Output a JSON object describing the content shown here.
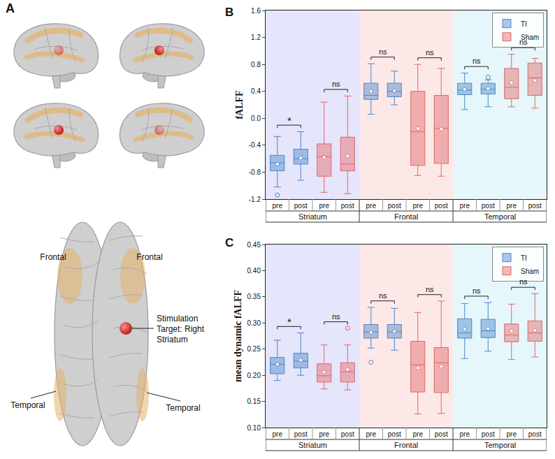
{
  "chart_data": [
    {
      "panel": "B",
      "type": "box",
      "ylabel": "fALFF",
      "ylim": [
        -1.2,
        1.6
      ],
      "yticks": [
        -1.2,
        -0.8,
        -0.4,
        {
          "value": 0,
          "label": "0.0"
        },
        0.4,
        0.8,
        1.2,
        1.6
      ],
      "categories": [
        "pre",
        "post"
      ],
      "groups": [
        "Striatum",
        "Frontal",
        "Temporal"
      ],
      "legend": "top right",
      "series": [
        {
          "name": "TI",
          "color": "#4a86c8",
          "comparisons": [
            "*",
            "ns",
            "ns"
          ],
          "boxes": [
            [
              {
                "lower": -1.02,
                "q1": -0.78,
                "median": -0.66,
                "q3": -0.55,
                "upper": -0.27,
                "mean": -0.68,
                "outliers": [
                  -1.14
                ]
              },
              {
                "lower": -0.92,
                "q1": -0.68,
                "median": -0.6,
                "q3": -0.46,
                "upper": -0.2,
                "mean": -0.59,
                "outliers": []
              }
            ],
            [
              {
                "lower": 0.06,
                "q1": 0.28,
                "median": 0.34,
                "q3": 0.52,
                "upper": 0.81,
                "mean": 0.4,
                "outliers": []
              },
              {
                "lower": 0.2,
                "q1": 0.32,
                "median": 0.4,
                "q3": 0.52,
                "upper": 0.7,
                "mean": 0.41,
                "outliers": []
              }
            ],
            [
              {
                "lower": 0.13,
                "q1": 0.35,
                "median": 0.42,
                "q3": 0.52,
                "upper": 0.67,
                "mean": 0.43,
                "outliers": []
              },
              {
                "lower": 0.17,
                "q1": 0.36,
                "median": 0.43,
                "q3": 0.52,
                "upper": 0.57,
                "mean": 0.44,
                "outliers": [
                  0.61
                ]
              }
            ]
          ]
        },
        {
          "name": "Sham",
          "color": "#e06666",
          "comparisons": [
            "ns",
            "ns",
            "ns"
          ],
          "boxes": [
            [
              {
                "lower": -1.1,
                "q1": -0.86,
                "median": -0.57,
                "q3": -0.38,
                "upper": 0.24,
                "mean": -0.58,
                "outliers": []
              },
              {
                "lower": -1.12,
                "q1": -0.78,
                "median": -0.68,
                "q3": -0.28,
                "upper": 0.33,
                "mean": -0.56,
                "outliers": []
              }
            ],
            [
              {
                "lower": -0.85,
                "q1": -0.7,
                "median": -0.2,
                "q3": 0.4,
                "upper": 0.8,
                "mean": -0.15,
                "outliers": []
              },
              {
                "lower": -0.86,
                "q1": -0.67,
                "median": -0.15,
                "q3": 0.34,
                "upper": 0.74,
                "mean": -0.16,
                "outliers": []
              }
            ],
            [
              {
                "lower": 0.17,
                "q1": 0.29,
                "median": 0.46,
                "q3": 0.74,
                "upper": 0.95,
                "mean": 0.53,
                "outliers": []
              },
              {
                "lower": 0.15,
                "q1": 0.34,
                "median": 0.6,
                "q3": 0.82,
                "upper": 0.89,
                "mean": 0.56,
                "outliers": []
              }
            ]
          ]
        }
      ]
    },
    {
      "panel": "C",
      "type": "box",
      "ylabel": "mean dynamic fALFF",
      "ylim": [
        0.1,
        0.45
      ],
      "yticks": [
        {
          "value": 0.1,
          "label": "0.10"
        },
        0.15,
        {
          "value": 0.2,
          "label": "0.20"
        },
        0.25,
        {
          "value": 0.3,
          "label": "0.30"
        },
        0.35,
        {
          "value": 0.4,
          "label": "0.40"
        },
        0.45
      ],
      "categories": [
        "pre",
        "post"
      ],
      "groups": [
        "Striatum",
        "Frontal",
        "Temporal"
      ],
      "legend": "top right",
      "series": [
        {
          "name": "TI",
          "color": "#4a86c8",
          "comparisons": [
            "*",
            "ns",
            "ns"
          ],
          "boxes": [
            [
              {
                "lower": 0.19,
                "q1": 0.203,
                "median": 0.221,
                "q3": 0.234,
                "upper": 0.267,
                "mean": 0.221,
                "outliers": []
              },
              {
                "lower": 0.2,
                "q1": 0.214,
                "median": 0.227,
                "q3": 0.242,
                "upper": 0.281,
                "mean": 0.229,
                "outliers": []
              }
            ],
            [
              {
                "lower": 0.252,
                "q1": 0.271,
                "median": 0.283,
                "q3": 0.297,
                "upper": 0.33,
                "mean": 0.282,
                "outliers": [
                  0.225
                ]
              },
              {
                "lower": 0.248,
                "q1": 0.271,
                "median": 0.283,
                "q3": 0.297,
                "upper": 0.328,
                "mean": 0.284,
                "outliers": []
              }
            ],
            [
              {
                "lower": 0.232,
                "q1": 0.271,
                "median": 0.281,
                "q3": 0.308,
                "upper": 0.337,
                "mean": 0.288,
                "outliers": []
              },
              {
                "lower": 0.246,
                "q1": 0.272,
                "median": 0.285,
                "q3": 0.307,
                "upper": 0.339,
                "mean": 0.289,
                "outliers": []
              }
            ]
          ]
        },
        {
          "name": "Sham",
          "color": "#e06666",
          "comparisons": [
            "ns",
            "ns",
            "ns"
          ],
          "boxes": [
            [
              {
                "lower": 0.174,
                "q1": 0.187,
                "median": 0.199,
                "q3": 0.222,
                "upper": 0.258,
                "mean": 0.206,
                "outliers": []
              },
              {
                "lower": 0.172,
                "q1": 0.187,
                "median": 0.207,
                "q3": 0.224,
                "upper": 0.258,
                "mean": 0.211,
                "outliers": [
                  0.29
                ]
              }
            ],
            [
              {
                "lower": 0.126,
                "q1": 0.168,
                "median": 0.22,
                "q3": 0.265,
                "upper": 0.32,
                "mean": 0.214,
                "outliers": []
              },
              {
                "lower": 0.127,
                "q1": 0.167,
                "median": 0.224,
                "q3": 0.253,
                "upper": 0.342,
                "mean": 0.217,
                "outliers": []
              }
            ],
            [
              {
                "lower": 0.23,
                "q1": 0.264,
                "median": 0.277,
                "q3": 0.298,
                "upper": 0.336,
                "mean": 0.285,
                "outliers": []
              },
              {
                "lower": 0.235,
                "q1": 0.265,
                "median": 0.281,
                "q3": 0.304,
                "upper": 0.356,
                "mean": 0.286,
                "outliers": []
              }
            ]
          ]
        }
      ]
    }
  ],
  "diagram": {
    "panel": "A",
    "frontal_labels": [
      "Frontal",
      "Frontal"
    ],
    "temporal_labels": [
      "Temporal",
      "Temporal"
    ],
    "target": "Stimulation Target: Right Striatum"
  }
}
